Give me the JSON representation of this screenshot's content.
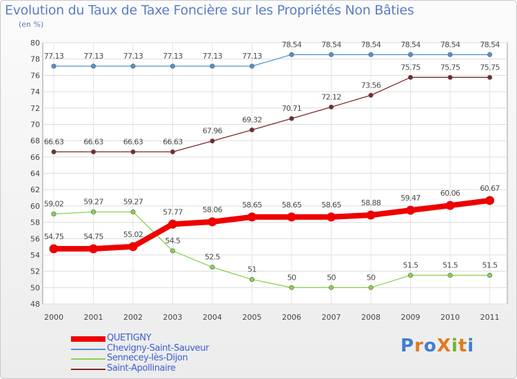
{
  "title": "Evolution du Taux de Taxe Foncière sur les Propriétés Non Bâties",
  "subtitle": "(en %)",
  "logo": "ProXiti",
  "chart_data": {
    "type": "line",
    "x": [
      "2000",
      "2001",
      "2002",
      "2003",
      "2004",
      "2005",
      "2006",
      "2007",
      "2008",
      "2009",
      "2010",
      "2011"
    ],
    "ylim": [
      48,
      80
    ],
    "yticks": [
      48,
      50,
      52,
      54,
      56,
      58,
      60,
      62,
      64,
      66,
      68,
      70,
      72,
      74,
      76,
      78,
      80
    ],
    "grid": true,
    "legend_position": "bottom-left",
    "series": [
      {
        "name": "QUETIGNY",
        "color": "#ee0000",
        "values": [
          54.75,
          54.75,
          55.02,
          57.77,
          58.06,
          58.65,
          58.65,
          58.65,
          58.88,
          59.47,
          60.06,
          60.67
        ],
        "labels": [
          "54.75",
          "54.75",
          "55.02",
          "57.77",
          "58.06",
          "58.65",
          "58.65",
          "58.65",
          "58.88",
          "59.47",
          "60.06",
          "60.67"
        ]
      },
      {
        "name": "Chevigny-Saint-Sauveur",
        "color": "#4f95d0",
        "values": [
          77.13,
          77.13,
          77.13,
          77.13,
          77.13,
          77.13,
          78.54,
          78.54,
          78.54,
          78.54,
          78.54,
          78.54
        ],
        "labels": [
          "77.13",
          "77.13",
          "77.13",
          "77.13",
          "77.13",
          "77.13",
          "78.54",
          "78.54",
          "78.54",
          "78.54",
          "78.54",
          "78.54"
        ]
      },
      {
        "name": "Sennecey-lès-Dijon",
        "color": "#8ad24e",
        "values": [
          59.02,
          59.27,
          59.27,
          54.5,
          52.5,
          51,
          50,
          50,
          50,
          51.5,
          51.5,
          51.5
        ],
        "labels": [
          "59.02",
          "59.27",
          "59.27",
          "54.5",
          "52.5",
          "51",
          "50",
          "50",
          "50",
          "51.5",
          "51.5",
          "51.5"
        ]
      },
      {
        "name": "Saint-Apollinaire",
        "color": "#7a2a2a",
        "values": [
          66.63,
          66.63,
          66.63,
          66.63,
          67.96,
          69.32,
          70.71,
          72.12,
          73.56,
          75.75,
          75.75,
          75.75
        ],
        "labels": [
          "66.63",
          "66.63",
          "66.63",
          "66.63",
          "67.96",
          "69.32",
          "70.71",
          "72.12",
          "73.56",
          "75.75",
          "75.75",
          "75.75"
        ]
      }
    ]
  }
}
